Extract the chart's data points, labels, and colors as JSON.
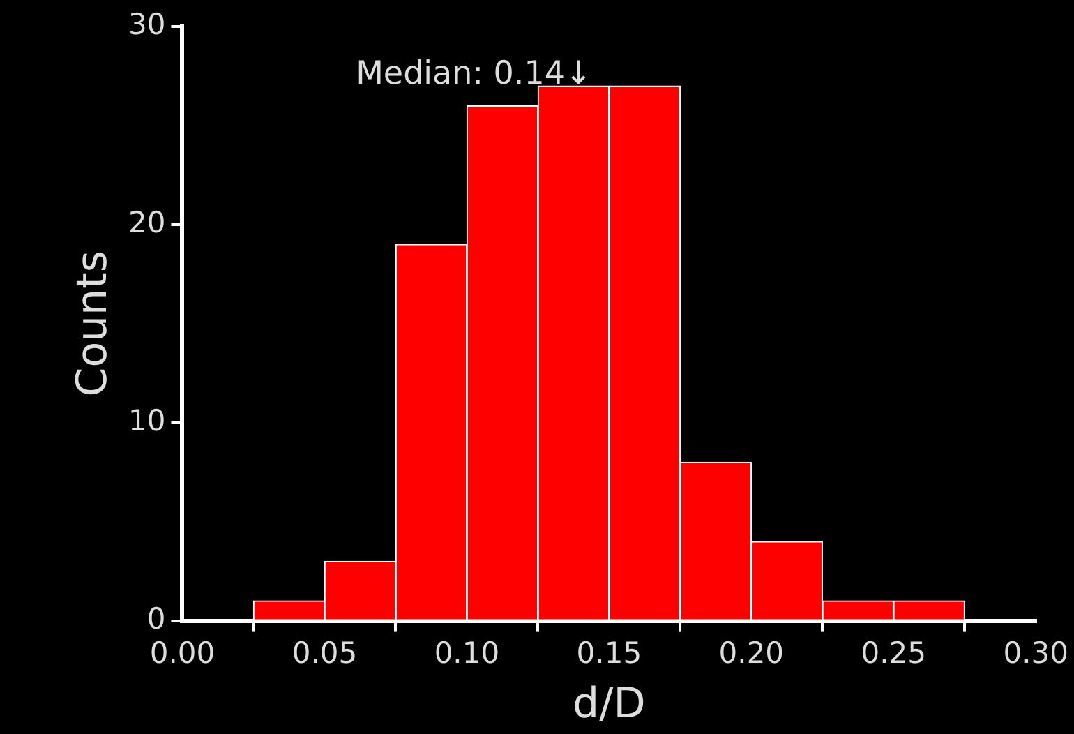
{
  "chart_data": {
    "type": "histogram",
    "xlabel": "d/D",
    "ylabel": "Counts",
    "bins": [
      0.025,
      0.05,
      0.075,
      0.1,
      0.125,
      0.15,
      0.175,
      0.2,
      0.225,
      0.25,
      0.275
    ],
    "values": [
      1,
      3,
      19,
      26,
      27,
      27,
      8,
      4,
      1,
      1
    ],
    "color": "#ff0000",
    "xlim": [
      0,
      0.3
    ],
    "xticks": [
      {
        "value": 0,
        "label": "0.00"
      },
      {
        "value": 0.05,
        "label": "0.05"
      },
      {
        "value": 0.1,
        "label": "0.10"
      },
      {
        "value": 0.15,
        "label": "0.15"
      },
      {
        "value": 0.2,
        "label": "0.20"
      },
      {
        "value": 0.25,
        "label": "0.25"
      },
      {
        "value": 0.3,
        "label": "0.30"
      }
    ],
    "ylim": [
      0,
      30
    ],
    "yticks": [
      0,
      10,
      20,
      30
    ],
    "annotations": [
      {
        "text": "Median: 0.14↓",
        "x": 0.14,
        "y": 27
      }
    ],
    "grid": false,
    "legend": false
  }
}
